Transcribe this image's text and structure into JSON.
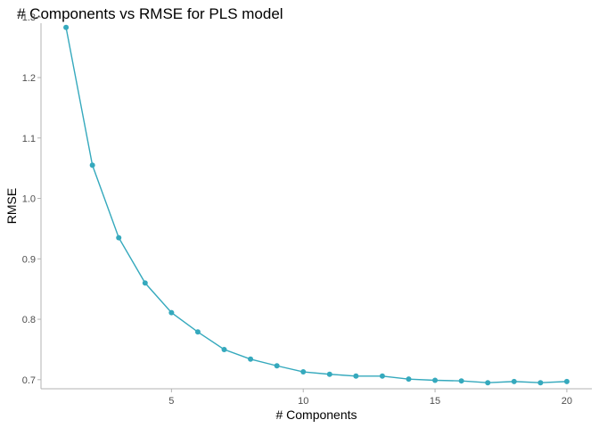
{
  "chart_data": {
    "type": "line",
    "title": "# Components vs RMSE for PLS model",
    "xlabel": "# Components",
    "ylabel": "RMSE",
    "xlim": [
      0.05,
      20.95
    ],
    "ylim": [
      0.685,
      1.29
    ],
    "xticks": [
      5,
      10,
      15,
      20
    ],
    "yticks": [
      0.7,
      0.8,
      0.9,
      1.0,
      1.1,
      1.2,
      1.3
    ],
    "grid": false,
    "legend": "none",
    "series": [
      {
        "color": "#35A9BD",
        "x": [
          1,
          2,
          3,
          4,
          5,
          6,
          7,
          8,
          9,
          10,
          11,
          12,
          13,
          14,
          15,
          16,
          17,
          18,
          19,
          20
        ],
        "y": [
          1.283,
          1.055,
          0.935,
          0.86,
          0.811,
          0.779,
          0.75,
          0.734,
          0.723,
          0.713,
          0.709,
          0.706,
          0.706,
          0.701,
          0.699,
          0.698,
          0.695,
          0.697,
          0.695,
          0.697
        ]
      }
    ]
  }
}
